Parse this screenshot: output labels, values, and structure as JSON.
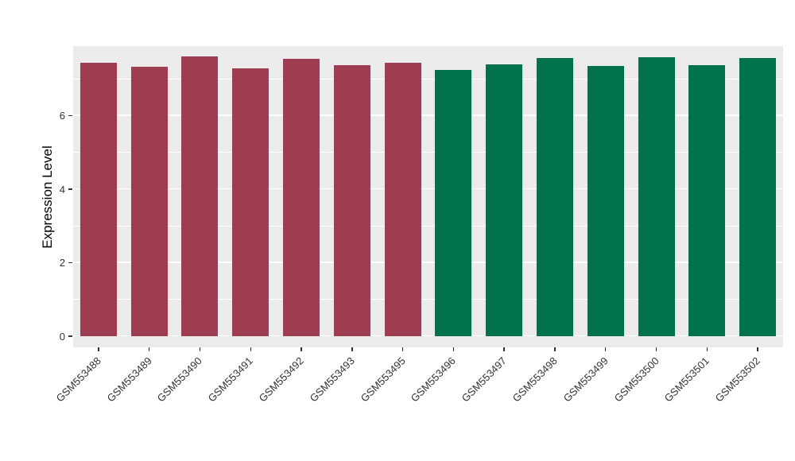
{
  "chart_data": {
    "type": "bar",
    "title": "",
    "xlabel": "",
    "ylabel": "Expression Level",
    "categories": [
      "GSM553488",
      "GSM553489",
      "GSM553490",
      "GSM553491",
      "GSM553492",
      "GSM553493",
      "GSM553495",
      "GSM553496",
      "GSM553497",
      "GSM553498",
      "GSM553499",
      "GSM553500",
      "GSM553501",
      "GSM553502"
    ],
    "values": [
      7.45,
      7.33,
      7.62,
      7.3,
      7.55,
      7.38,
      7.45,
      7.25,
      7.4,
      7.58,
      7.37,
      7.6,
      7.38,
      7.58
    ],
    "groups": [
      "group1",
      "group1",
      "group1",
      "group1",
      "group1",
      "group1",
      "group1",
      "group2",
      "group2",
      "group2",
      "group2",
      "group2",
      "group2",
      "group2"
    ],
    "group_colors": {
      "group1": "#9E3D50",
      "group2": "#00724C"
    },
    "yticks": [
      0,
      2,
      4,
      6
    ],
    "yticks_minor": [
      1,
      3,
      5,
      7
    ],
    "ylim": [
      0,
      7.9
    ],
    "grid": true,
    "legend": "none",
    "panel_bg": "#EBEBEB",
    "grid_color": "#FFFFFF",
    "axis_text_color": "#333333"
  }
}
